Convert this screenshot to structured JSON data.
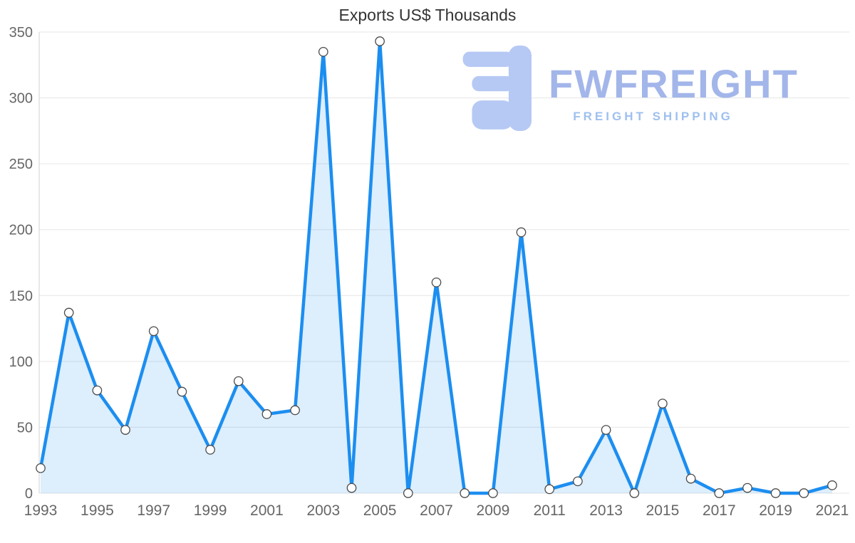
{
  "chart_data": {
    "type": "area",
    "title": "Exports US$ Thousands",
    "xlabel": "",
    "ylabel": "",
    "x": [
      1993,
      1994,
      1995,
      1996,
      1997,
      1998,
      1999,
      2000,
      2001,
      2002,
      2003,
      2004,
      2005,
      2006,
      2007,
      2008,
      2009,
      2010,
      2011,
      2012,
      2013,
      2014,
      2015,
      2016,
      2017,
      2018,
      2019,
      2020,
      2021
    ],
    "series": [
      {
        "name": "Exports",
        "values": [
          19,
          137,
          78,
          48,
          123,
          77,
          33,
          85,
          60,
          63,
          335,
          4,
          343,
          0,
          160,
          0,
          0,
          198,
          3,
          9,
          48,
          0,
          68,
          11,
          0,
          4,
          0,
          0,
          6
        ]
      }
    ],
    "ylim": [
      0,
      350
    ],
    "ytick_step": 50,
    "xtick_step": 2,
    "grid": true,
    "legend": "none",
    "colors": {
      "line": "#1c8ef0",
      "fill": "rgba(28,142,240,0.15)",
      "marker_fill": "#ffffff",
      "marker_stroke": "#4a4a4a",
      "grid": "#e6e6e6",
      "axis_line": "#d0d0d0",
      "axis_text": "#666666",
      "title_text": "#333333"
    }
  },
  "watermark": {
    "brand": "FWFREIGHT",
    "tagline": "FREIGHT SHIPPING",
    "logo_color": "#b6c9f4"
  }
}
